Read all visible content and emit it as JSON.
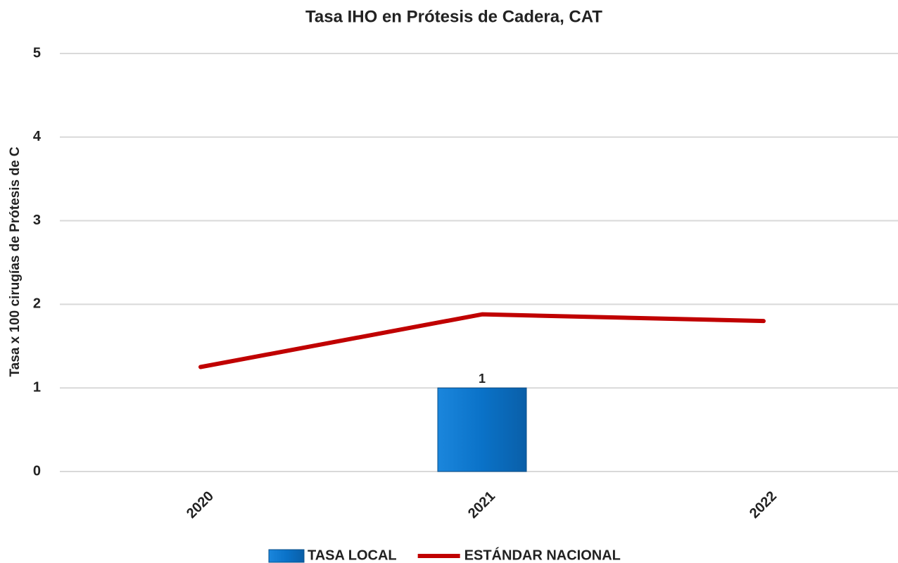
{
  "chart_data": {
    "type": "combo",
    "title": "Tasa IHO en Prótesis de Cadera, CAT",
    "y_label": "Tasa x 100 cirugías de Prótesis de C",
    "categories": [
      "2020",
      "2021",
      "2022"
    ],
    "series": [
      {
        "name": "TASA LOCAL",
        "type": "bar",
        "color": "#0a72c8",
        "values": [
          null,
          1,
          null
        ]
      },
      {
        "name": "ESTÁNDAR NACIONAL",
        "type": "line",
        "color": "#c00000",
        "values": [
          1.25,
          1.88,
          1.8
        ]
      }
    ],
    "ylim": [
      0,
      5
    ],
    "yticks": [
      0,
      1,
      2,
      3,
      4,
      5
    ],
    "grid": true,
    "legend": "bottom"
  }
}
